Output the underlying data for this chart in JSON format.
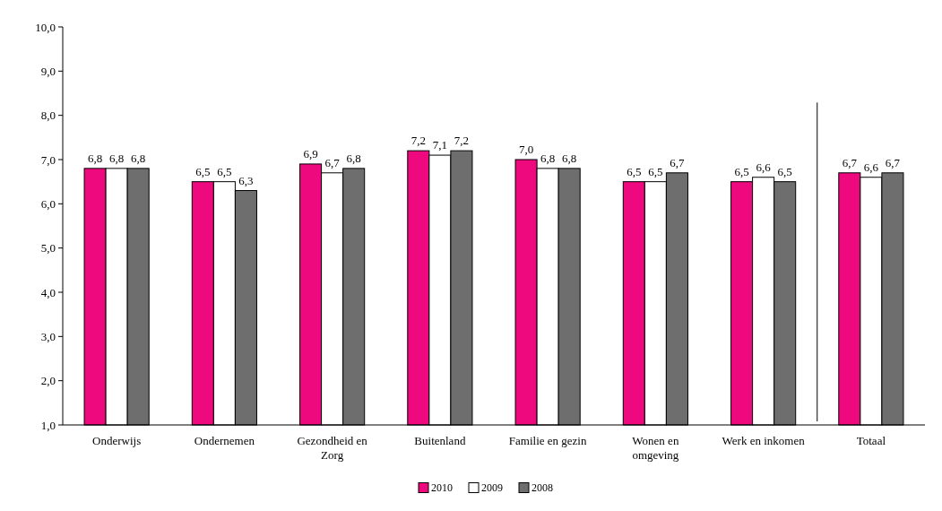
{
  "chart_data": {
    "type": "bar",
    "categories": [
      "Onderwijs",
      "Ondernemen",
      "Gezondheid en Zorg",
      "Buitenland",
      "Familie en gezin",
      "Wonen en omgeving",
      "Werk en inkomen",
      "Totaal"
    ],
    "series": [
      {
        "name": "2010",
        "color": "#ee0a7e",
        "values": [
          6.8,
          6.5,
          6.9,
          7.2,
          7.0,
          6.5,
          6.5,
          6.7
        ],
        "value_labels": [
          "6,8",
          "6,5",
          "6,9",
          "7,2",
          "7,0",
          "6,5",
          "6,5",
          "6,7"
        ]
      },
      {
        "name": "2009",
        "color": "#ffffff",
        "values": [
          6.8,
          6.5,
          6.7,
          7.1,
          6.8,
          6.5,
          6.6,
          6.6
        ],
        "value_labels": [
          "6,8",
          "6,5",
          "6,7",
          "7,1",
          "6,8",
          "6,5",
          "6,6",
          "6,6"
        ]
      },
      {
        "name": "2008",
        "color": "#6e6e6e",
        "values": [
          6.8,
          6.3,
          6.8,
          7.2,
          6.8,
          6.7,
          6.5,
          6.7
        ],
        "value_labels": [
          "6,8",
          "6,3",
          "6,8",
          "7,2",
          "6,8",
          "6,7",
          "6,5",
          "6,7"
        ]
      }
    ],
    "ylim": [
      1,
      10
    ],
    "yticks": [
      {
        "value": 1,
        "label": "1,0"
      },
      {
        "value": 2,
        "label": "2,0"
      },
      {
        "value": 3,
        "label": "3,0"
      },
      {
        "value": 4,
        "label": "4,0"
      },
      {
        "value": 5,
        "label": "5,0"
      },
      {
        "value": 6,
        "label": "6,0"
      },
      {
        "value": 7,
        "label": "7,0"
      },
      {
        "value": 8,
        "label": "8,0"
      },
      {
        "value": 9,
        "label": "9,0"
      },
      {
        "value": 10,
        "label": "10,0"
      }
    ],
    "legend": "bottom",
    "grid": false
  }
}
